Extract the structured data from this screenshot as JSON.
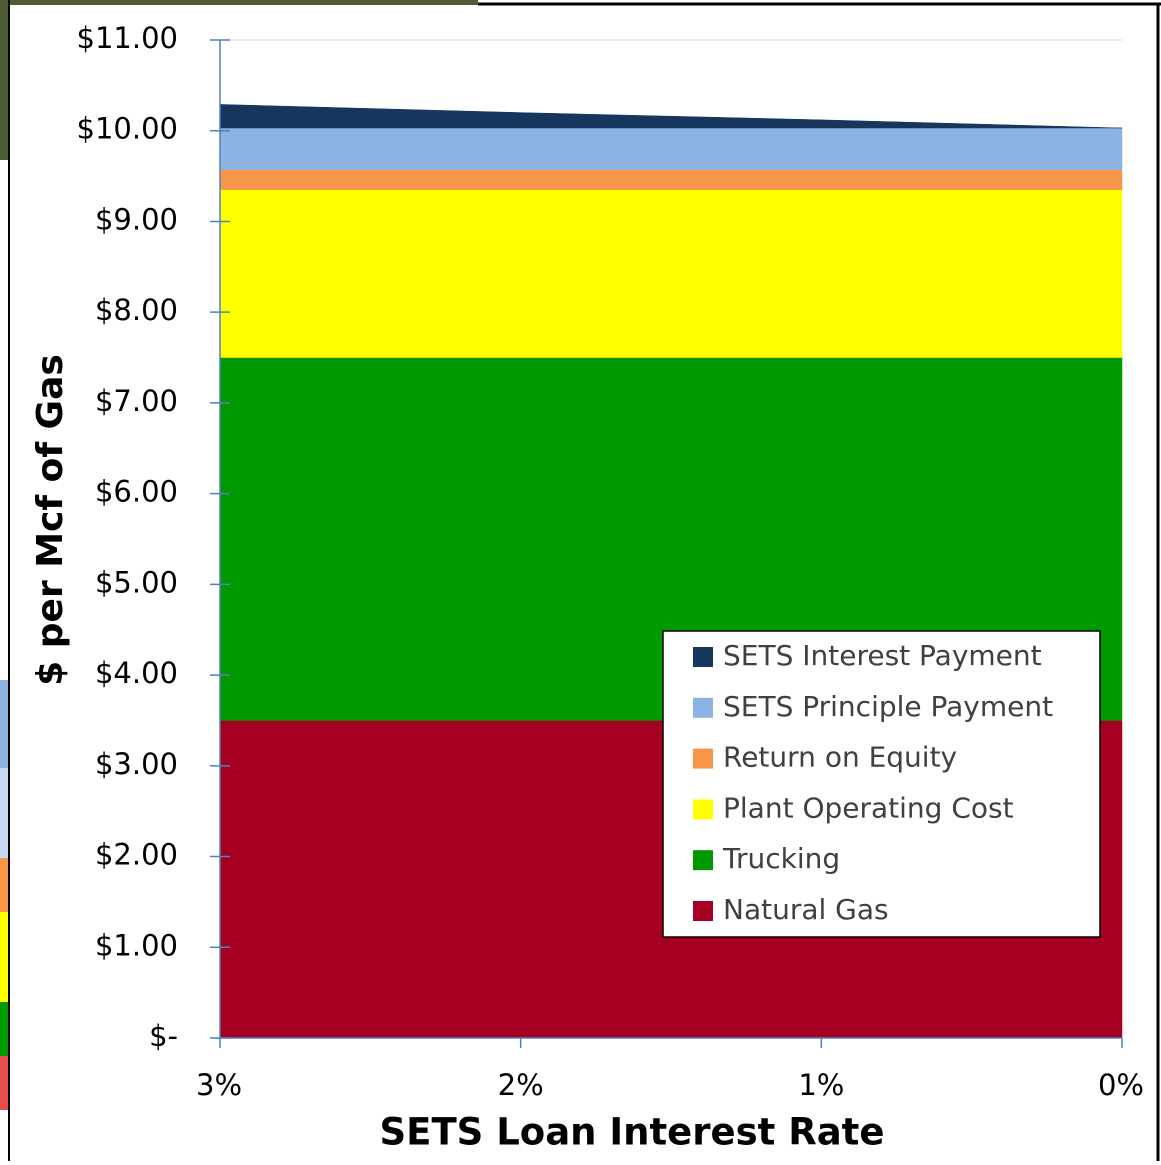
{
  "chart_data": {
    "type": "stacked_area",
    "x_label": "SETS Loan Interest Rate",
    "y_label": "$ per Mcf of Gas",
    "categories": [
      "3%",
      "2%",
      "1%",
      "0%"
    ],
    "series": [
      {
        "name": "Natural Gas",
        "color": "#a50021",
        "values": [
          3.5,
          3.5,
          3.5,
          3.5
        ]
      },
      {
        "name": "Trucking",
        "color": "#009900",
        "values": [
          4.0,
          4.0,
          4.0,
          4.0
        ]
      },
      {
        "name": "Plant Operating Cost",
        "color": "#ffff00",
        "values": [
          1.85,
          1.85,
          1.85,
          1.85
        ]
      },
      {
        "name": "Return on Equity",
        "color": "#f79646",
        "values": [
          0.22,
          0.22,
          0.22,
          0.22
        ]
      },
      {
        "name": "SETS Principle Payment",
        "color": "#8db3e2",
        "values": [
          0.46,
          0.46,
          0.46,
          0.46
        ]
      },
      {
        "name": "SETS Interest Payment",
        "color": "#17365d",
        "values": [
          0.26,
          0.17,
          0.09,
          0
        ]
      }
    ],
    "ylim": [
      0,
      11
    ],
    "yticks": [
      {
        "value": 0,
        "label": "$-"
      },
      {
        "value": 1,
        "label": "$1.00"
      },
      {
        "value": 2,
        "label": "$2.00"
      },
      {
        "value": 3,
        "label": "$3.00"
      },
      {
        "value": 4,
        "label": "$4.00"
      },
      {
        "value": 5,
        "label": "$5.00"
      },
      {
        "value": 6,
        "label": "$6.00"
      },
      {
        "value": 7,
        "label": "$7.00"
      },
      {
        "value": 8,
        "label": "$8.00"
      },
      {
        "value": 9,
        "label": "$9.00"
      },
      {
        "value": 10,
        "label": "$10.00"
      },
      {
        "value": 11,
        "label": "$11.00"
      }
    ],
    "grid": true,
    "legend": "lower right"
  }
}
